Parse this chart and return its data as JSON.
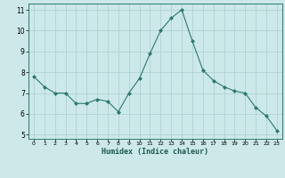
{
  "x": [
    0,
    1,
    2,
    3,
    4,
    5,
    6,
    7,
    8,
    9,
    10,
    11,
    12,
    13,
    14,
    15,
    16,
    17,
    18,
    19,
    20,
    21,
    22,
    23
  ],
  "y": [
    7.8,
    7.3,
    7.0,
    7.0,
    6.5,
    6.5,
    6.7,
    6.6,
    6.1,
    7.0,
    7.7,
    8.9,
    10.0,
    10.6,
    11.0,
    9.5,
    8.1,
    7.6,
    7.3,
    7.1,
    7.0,
    6.3,
    5.9,
    5.2
  ],
  "xlabel": "Humidex (Indice chaleur)",
  "xlim": [
    -0.5,
    23.5
  ],
  "ylim": [
    4.8,
    11.3
  ],
  "yticks": [
    5,
    6,
    7,
    8,
    9,
    10,
    11
  ],
  "xticks": [
    0,
    1,
    2,
    3,
    4,
    5,
    6,
    7,
    8,
    9,
    10,
    11,
    12,
    13,
    14,
    15,
    16,
    17,
    18,
    19,
    20,
    21,
    22,
    23
  ],
  "line_color": "#2a7a6e",
  "marker_color": "#2a7a6e",
  "bg_color": "#cce8e8",
  "grid_color": "#aacfcf",
  "axes_bg": "#cce8e8"
}
